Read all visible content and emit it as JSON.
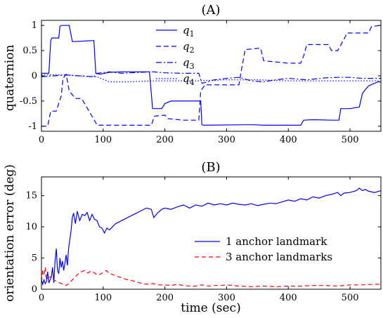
{
  "chart_data": [
    {
      "type": "line",
      "title": "(A)",
      "xlabel": "",
      "ylabel": "quaternion",
      "xlim": [
        0,
        550
      ],
      "ylim": [
        -1.1,
        1.1
      ],
      "x_ticks": [
        0,
        100,
        200,
        300,
        400,
        500
      ],
      "y_ticks": [
        -1,
        -0.5,
        0,
        0.5,
        1
      ],
      "grid": false,
      "legend": "top-center",
      "series": [
        {
          "name": "q1",
          "legend_main": "q",
          "legend_sub": "1",
          "color": "#0000ff",
          "dash": "solid",
          "x": [
            0,
            12,
            15,
            17,
            28,
            30,
            32,
            45,
            50,
            55,
            85,
            88,
            95,
            110,
            130,
            150,
            175,
            180,
            183,
            195,
            200,
            210,
            228,
            258,
            260,
            263,
            330,
            345,
            360,
            375,
            380,
            410,
            420,
            425,
            440,
            470,
            482,
            485,
            500,
            515,
            520,
            523,
            530,
            545,
            550
          ],
          "y": [
            0.05,
            0.05,
            0.7,
            0.75,
            0.75,
            0.98,
            1.0,
            1.0,
            0.68,
            0.68,
            0.7,
            0.05,
            0.03,
            0.07,
            0.08,
            0.08,
            0.08,
            -0.65,
            -0.65,
            -0.65,
            -0.55,
            -0.5,
            -0.5,
            -0.5,
            -0.97,
            -0.98,
            -0.97,
            -0.97,
            -0.98,
            -0.98,
            -0.98,
            -0.98,
            -0.98,
            -0.88,
            -0.87,
            -0.88,
            -0.88,
            -0.65,
            -0.65,
            -0.62,
            -0.35,
            -0.3,
            -0.2,
            -0.12,
            -0.12
          ]
        },
        {
          "name": "q2",
          "legend_main": "q",
          "legend_sub": "2",
          "color": "#0000ff",
          "dash": "7,4",
          "x": [
            0,
            10,
            15,
            22,
            24,
            32,
            35,
            40,
            45,
            55,
            60,
            65,
            88,
            90,
            100,
            130,
            155,
            178,
            183,
            200,
            205,
            230,
            255,
            258,
            265,
            320,
            323,
            330,
            355,
            360,
            400,
            420,
            425,
            430,
            465,
            470,
            480,
            490,
            495,
            530,
            535,
            550
          ],
          "y": [
            -1.0,
            -1.0,
            -0.7,
            -0.7,
            -0.7,
            -0.4,
            -0.05,
            0.03,
            -0.3,
            -0.45,
            -0.45,
            -0.45,
            -0.93,
            -0.98,
            -0.98,
            -0.98,
            -0.98,
            -0.98,
            -0.8,
            -0.78,
            -0.85,
            -0.88,
            -0.88,
            -0.3,
            -0.18,
            -0.18,
            0.05,
            0.52,
            0.55,
            0.3,
            0.25,
            0.25,
            0.4,
            0.62,
            0.62,
            0.5,
            0.5,
            0.72,
            0.85,
            0.85,
            0.98,
            1.0
          ]
        },
        {
          "name": "q3",
          "legend_main": "q",
          "legend_sub": "3",
          "color": "#0000ff",
          "dash": "8,3,2,3",
          "x": [
            0,
            20,
            40,
            60,
            85,
            90,
            110,
            130,
            160,
            180,
            200,
            230,
            255,
            260,
            280,
            300,
            320,
            340,
            360,
            380,
            400,
            430,
            460,
            480,
            500,
            520,
            550
          ],
          "y": [
            -0.02,
            0.0,
            0.02,
            0.0,
            -0.02,
            0.05,
            0.08,
            0.05,
            0.07,
            0.08,
            0.06,
            0.05,
            0.05,
            -0.15,
            -0.08,
            -0.05,
            -0.03,
            -0.1,
            -0.12,
            -0.08,
            -0.05,
            -0.08,
            -0.04,
            -0.03,
            -0.03,
            -0.05,
            -0.05
          ]
        },
        {
          "name": "q4",
          "legend_main": "q",
          "legend_sub": "4",
          "color": "#0000ff",
          "dash": "1.5,2.5",
          "x": [
            0,
            30,
            60,
            90,
            110,
            140,
            180,
            200,
            250,
            300,
            350,
            400,
            450,
            500,
            550
          ],
          "y": [
            0.02,
            0.02,
            0.0,
            -0.02,
            -0.12,
            -0.12,
            -0.1,
            -0.1,
            -0.1,
            -0.08,
            -0.08,
            -0.1,
            -0.1,
            -0.1,
            -0.1
          ]
        }
      ]
    },
    {
      "type": "line",
      "title": "(B)",
      "xlabel": "time (sec)",
      "ylabel": "orientation error (deg)",
      "xlim": [
        0,
        550
      ],
      "ylim": [
        0,
        18
      ],
      "x_ticks": [
        0,
        100,
        200,
        300,
        400,
        500
      ],
      "y_ticks": [
        0,
        5,
        10,
        15
      ],
      "grid": false,
      "legend": "center-right",
      "series": [
        {
          "name": "1 anchor landmark",
          "color": "#0000ff",
          "dash": "solid",
          "x": [
            0,
            2,
            4,
            6,
            8,
            10,
            12,
            14,
            16,
            18,
            20,
            22,
            24,
            26,
            28,
            30,
            32,
            34,
            36,
            38,
            40,
            42,
            44,
            46,
            48,
            50,
            52,
            55,
            58,
            62,
            66,
            70,
            74,
            78,
            82,
            86,
            90,
            94,
            98,
            102,
            106,
            110,
            120,
            130,
            140,
            150,
            160,
            170,
            178,
            182,
            188,
            195,
            200,
            210,
            220,
            230,
            240,
            250,
            260,
            270,
            280,
            290,
            300,
            310,
            320,
            330,
            340,
            350,
            360,
            370,
            380,
            390,
            400,
            410,
            420,
            430,
            440,
            450,
            460,
            470,
            480,
            485,
            490,
            500,
            510,
            515,
            520,
            525,
            530,
            540,
            550
          ],
          "y": [
            1.5,
            0.8,
            1.5,
            0.9,
            1.2,
            2.8,
            1.0,
            1.5,
            2.0,
            3.5,
            1.0,
            4.5,
            6.5,
            3.0,
            2.5,
            5.0,
            3.5,
            4.5,
            3.0,
            4.2,
            5.5,
            3.8,
            6.5,
            8.0,
            9.5,
            11.5,
            12.2,
            10.5,
            12.5,
            11.0,
            12.0,
            11.8,
            12.3,
            11.0,
            12.0,
            11.2,
            11.0,
            10.0,
            9.8,
            9.0,
            9.8,
            9.5,
            10.5,
            11.0,
            11.5,
            12.0,
            12.5,
            13.0,
            12.8,
            11.5,
            12.2,
            12.8,
            13.0,
            12.8,
            13.2,
            13.5,
            13.0,
            13.5,
            13.3,
            13.8,
            13.5,
            13.7,
            13.5,
            13.8,
            13.6,
            13.5,
            13.7,
            13.4,
            13.6,
            13.8,
            13.7,
            14.0,
            14.3,
            14.1,
            14.5,
            14.3,
            14.8,
            14.6,
            15.0,
            15.2,
            15.5,
            15.0,
            15.4,
            15.5,
            15.8,
            16.2,
            15.8,
            16.0,
            15.7,
            15.5,
            15.8
          ]
        },
        {
          "name": "3 anchor landmarks",
          "color": "#ff0000",
          "dash": "6,4",
          "x": [
            0,
            2,
            4,
            6,
            8,
            10,
            15,
            20,
            25,
            30,
            35,
            40,
            45,
            50,
            55,
            60,
            65,
            70,
            75,
            80,
            85,
            90,
            95,
            100,
            105,
            110,
            120,
            130,
            140,
            150,
            160,
            170,
            180,
            190,
            200,
            210,
            220,
            230,
            240,
            250,
            260,
            270,
            280,
            290,
            300,
            320,
            340,
            360,
            380,
            400,
            420,
            440,
            460,
            480,
            500,
            520,
            540,
            550
          ],
          "y": [
            1.2,
            3.0,
            2.5,
            3.5,
            1.5,
            1.8,
            2.0,
            1.5,
            1.2,
            1.0,
            0.8,
            0.6,
            1.0,
            1.5,
            2.0,
            2.5,
            2.8,
            3.0,
            2.6,
            2.9,
            2.7,
            2.3,
            2.4,
            2.7,
            3.0,
            2.5,
            2.2,
            1.8,
            1.5,
            1.3,
            1.0,
            0.8,
            0.9,
            0.7,
            0.7,
            0.6,
            0.8,
            0.6,
            0.5,
            0.5,
            0.7,
            0.5,
            0.6,
            0.6,
            0.7,
            0.5,
            0.4,
            0.5,
            0.4,
            0.5,
            0.5,
            0.6,
            0.6,
            0.5,
            0.7,
            0.7,
            0.8,
            0.8
          ]
        }
      ]
    }
  ]
}
